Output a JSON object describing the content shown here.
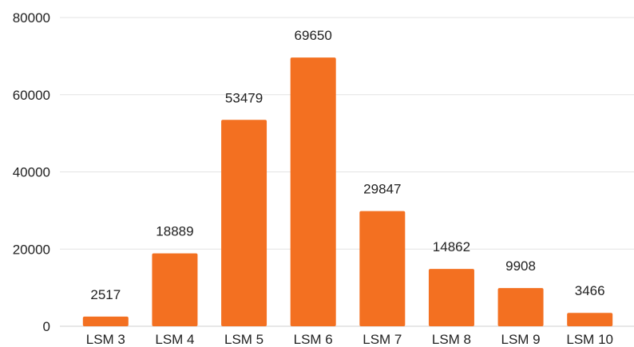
{
  "chart_data": {
    "type": "bar",
    "title": "",
    "xlabel": "",
    "ylabel": "",
    "categories": [
      "LSM 3",
      "LSM 4",
      "LSM 5",
      "LSM 6",
      "LSM 7",
      "LSM 8",
      "LSM 9",
      "LSM 10"
    ],
    "values": [
      2517,
      18889,
      53479,
      69650,
      29847,
      14862,
      9908,
      3466
    ],
    "data_labels": [
      "2517",
      "18889",
      "53479",
      "69650",
      "29847",
      "14862",
      "9908",
      "3466"
    ],
    "ylim": [
      0,
      80000
    ],
    "yticks": [
      0,
      20000,
      40000,
      60000,
      80000
    ],
    "ytick_labels": [
      "0",
      "20000",
      "40000",
      "60000",
      "80000"
    ],
    "grid": true,
    "legend": "none",
    "bar_color": "#f37021"
  }
}
